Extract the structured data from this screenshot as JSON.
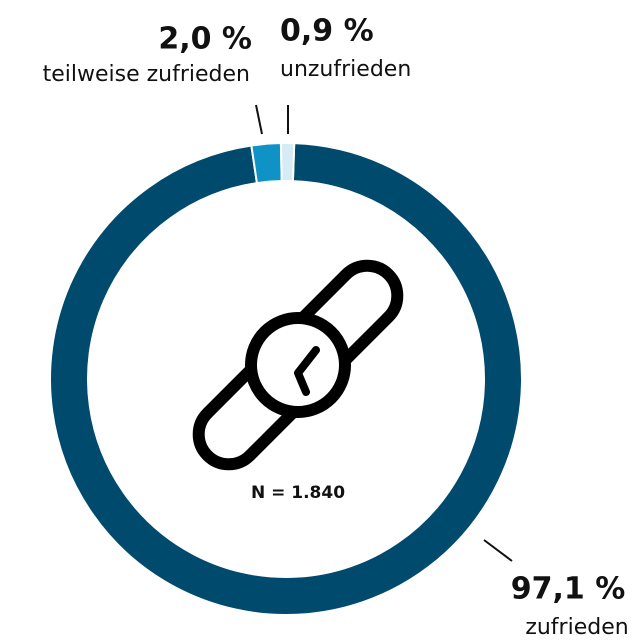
{
  "chart_data": {
    "type": "pie",
    "donut": true,
    "categories": [
      "zufrieden",
      "teilweise zufrieden",
      "unzufrieden"
    ],
    "values": [
      97.1,
      2.0,
      0.9
    ],
    "value_labels": [
      "97,1 %",
      "2,0 %",
      "0,9 %"
    ],
    "colors": [
      "#004a6e",
      "#0f93c6",
      "#d6ecf5"
    ],
    "annotation": "N = 1.840"
  }
}
